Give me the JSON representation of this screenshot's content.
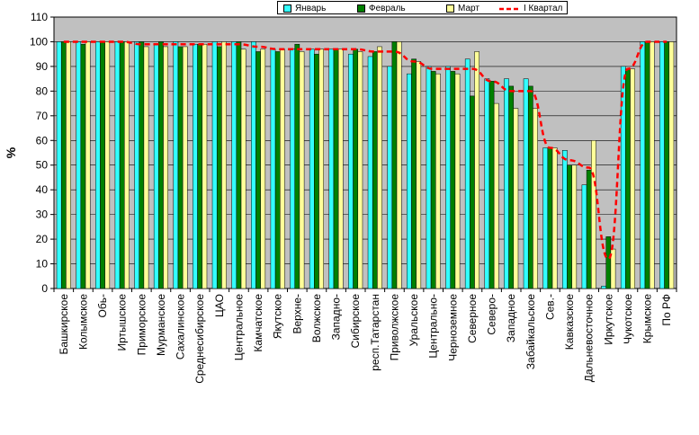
{
  "chart_data": {
    "type": "bar",
    "title": "",
    "xlabel": "",
    "ylabel": "%",
    "ylim": [
      0,
      110
    ],
    "yticks": [
      0,
      10,
      20,
      30,
      40,
      50,
      60,
      70,
      80,
      90,
      100,
      110
    ],
    "grid": true,
    "legend_position": "top-right",
    "categories": [
      "Башкирское",
      "Колымское",
      "Обь-",
      "Иртышское",
      "Приморское",
      "Мурманское",
      "Сахалинское",
      "Среднесибирское",
      "ЦАО",
      "Центральное",
      "Камчатское",
      "Якутское",
      "Верхне-",
      "Волжское",
      "Западно-",
      "Сибирское",
      "респ.Татарстан",
      "Приволжское",
      "Уральское",
      "Центрально-",
      "Черноземное",
      "Северное",
      "Северо-",
      "Западное",
      "Забайкальское",
      "Сев.-",
      "Кавказское",
      "Дальневосточное",
      "Иркутское",
      "Чукотское",
      "Крымское",
      "По РФ"
    ],
    "series": [
      {
        "name": "Январь",
        "kind": "bar",
        "color": "#33ffff",
        "values": [
          100,
          100,
          100,
          100,
          100,
          99,
          100,
          99,
          100,
          100,
          100,
          97,
          97,
          97,
          97,
          95,
          94,
          90,
          87,
          90,
          90,
          93,
          85,
          85,
          85,
          57,
          56,
          42,
          1,
          90,
          100,
          100
        ]
      },
      {
        "name": "Февраль",
        "kind": "bar",
        "color": "#008000",
        "values": [
          100,
          99,
          100,
          100,
          100,
          100,
          98,
          99,
          98,
          100,
          96,
          96,
          99,
          95,
          97,
          97,
          96,
          100,
          93,
          88,
          88,
          78,
          84,
          82,
          82,
          57,
          50,
          48,
          21,
          89,
          100,
          100
        ]
      },
      {
        "name": "Март",
        "kind": "bar",
        "color": "#ffff99",
        "values": [
          100,
          100,
          100,
          100,
          98,
          98,
          98,
          99,
          100,
          97,
          97,
          97,
          96,
          97,
          97,
          96,
          98,
          100,
          92,
          87,
          87,
          96,
          75,
          73,
          73,
          57,
          50,
          60,
          16,
          89,
          100,
          100
        ]
      },
      {
        "name": "I Квартал",
        "kind": "line",
        "color": "#ff0000",
        "values": [
          100,
          100,
          100,
          100,
          99,
          99,
          99,
          99,
          99,
          99,
          98,
          97,
          97,
          97,
          97,
          97,
          96,
          96,
          92,
          89,
          89,
          89,
          84,
          80,
          80,
          57,
          52,
          49,
          12,
          89,
          100,
          100
        ]
      }
    ]
  }
}
